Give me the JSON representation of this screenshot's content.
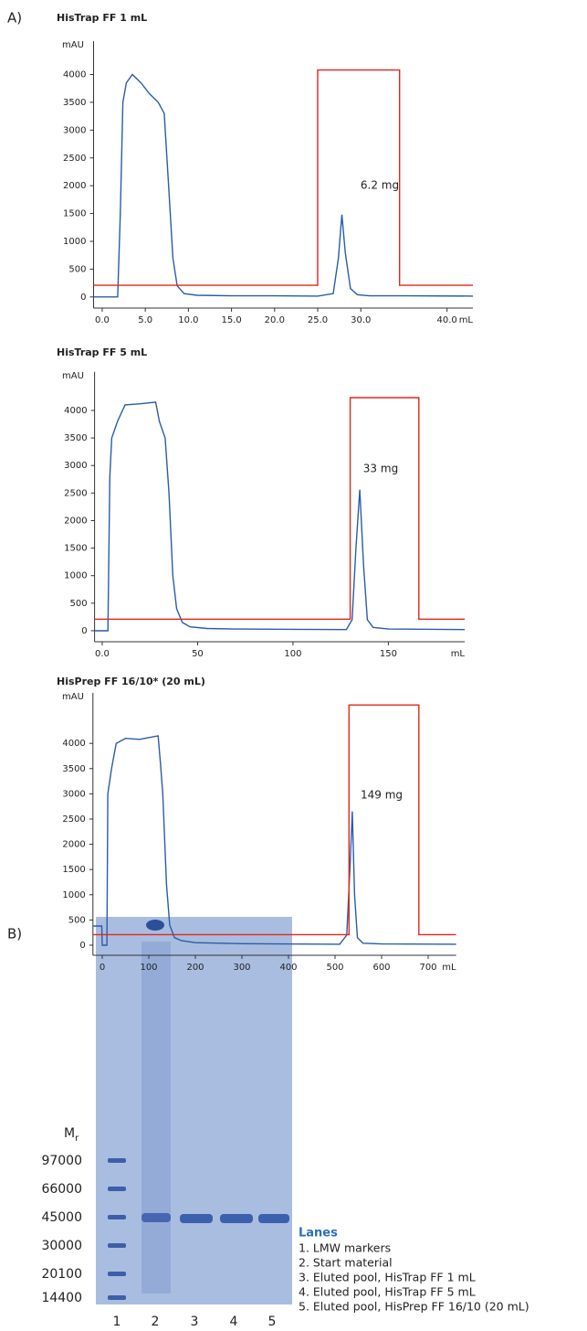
{
  "panel_labels": [
    "A)",
    "B)"
  ],
  "chart_data": [
    {
      "type": "line",
      "title": "HisTrap FF 1 mL",
      "y_label": "mAU",
      "x_label": "mL",
      "annotation": "6.2 mg",
      "xlim": [
        -1,
        43
      ],
      "ylim": [
        -200,
        4600
      ],
      "xticks": [
        {
          "value": 0,
          "label": "0.0"
        },
        {
          "value": 5,
          "label": "5.0"
        },
        {
          "value": 10,
          "label": "10.0"
        },
        {
          "value": 15,
          "label": "15.0"
        },
        {
          "value": 20,
          "label": "20.0"
        },
        {
          "value": 25,
          "label": "25.0"
        },
        {
          "value": 30,
          "label": "30.0"
        },
        {
          "value": 40,
          "label": "40.0"
        }
      ],
      "yticks": [
        0,
        500,
        1000,
        1500,
        2000,
        2500,
        3000,
        3500,
        4000
      ],
      "series": [
        {
          "color": "#2a5cab",
          "x": [
            -1,
            1.8,
            2.1,
            2.4,
            2.8,
            3.5,
            4.5,
            5.5,
            6.5,
            7.2,
            7.7,
            8.2,
            8.7,
            9.5,
            11,
            15,
            20,
            25,
            26.8,
            27.4,
            27.8,
            28.2,
            28.8,
            29.6,
            31,
            35,
            43
          ],
          "values": [
            0,
            0,
            1500,
            3500,
            3850,
            4000,
            3850,
            3650,
            3500,
            3300,
            2000,
            700,
            200,
            60,
            30,
            20,
            20,
            15,
            60,
            700,
            1480,
            800,
            150,
            40,
            20,
            20,
            15
          ]
        },
        {
          "color": "#e3261c",
          "x": [
            -1,
            25,
            25,
            34.5,
            34.5,
            43
          ],
          "values": [
            210,
            210,
            4080,
            4080,
            210,
            210
          ]
        }
      ]
    },
    {
      "type": "line",
      "title": "HisTrap FF 5 mL",
      "y_label": "mAU",
      "x_label": "mL",
      "annotation": "33 mg",
      "xlim": [
        -4,
        190
      ],
      "ylim": [
        -200,
        4700
      ],
      "xticks": [
        {
          "value": 0,
          "label": "0.0"
        },
        50,
        100,
        150
      ],
      "yticks": [
        0,
        500,
        1000,
        1500,
        2000,
        2500,
        3000,
        3500,
        4000
      ],
      "series": [
        {
          "color": "#2a5cab",
          "x": [
            -4,
            3,
            4,
            5,
            8,
            12,
            20,
            28,
            30,
            33,
            35,
            37,
            39,
            42,
            46,
            55,
            70,
            100,
            128,
            131,
            133,
            135,
            137,
            139,
            142,
            150,
            190
          ],
          "values": [
            0,
            0,
            2800,
            3500,
            3800,
            4100,
            4120,
            4150,
            3800,
            3500,
            2500,
            1000,
            400,
            150,
            70,
            40,
            30,
            25,
            20,
            200,
            1500,
            2560,
            1200,
            200,
            60,
            30,
            20
          ]
        },
        {
          "color": "#e3261c",
          "x": [
            -4,
            130,
            130,
            166,
            166,
            190
          ],
          "values": [
            210,
            210,
            4232,
            4232,
            210,
            210
          ]
        }
      ]
    },
    {
      "type": "line",
      "title": "HisPrep FF 16/10* (20 mL)",
      "y_label": "mAU",
      "x_label": "mL",
      "annotation": "149 mg",
      "xlim": [
        -20,
        760
      ],
      "ylim": [
        -200,
        5000
      ],
      "xticks": [
        0,
        100,
        200,
        300,
        400,
        500,
        600,
        700
      ],
      "yticks": [
        0,
        500,
        1000,
        1500,
        2000,
        2500,
        3000,
        3500,
        4000
      ],
      "series": [
        {
          "color": "#2a5cab",
          "x": [
            -20,
            -1,
            0,
            10,
            12,
            20,
            30,
            50,
            80,
            120,
            125,
            130,
            138,
            145,
            155,
            170,
            200,
            300,
            510,
            525,
            532,
            537,
            542,
            548,
            560,
            600,
            760
          ],
          "values": [
            380,
            380,
            0,
            0,
            3000,
            3500,
            4000,
            4100,
            4080,
            4150,
            3600,
            3000,
            1200,
            400,
            150,
            90,
            50,
            30,
            20,
            200,
            1500,
            2650,
            1000,
            150,
            40,
            25,
            20
          ]
        },
        {
          "color": "#e3261c",
          "x": [
            -20,
            530,
            530,
            680,
            680,
            760
          ],
          "values": [
            210,
            210,
            4760,
            4760,
            210,
            210
          ]
        }
      ]
    }
  ],
  "gel": {
    "mr_label": {
      "main": "M",
      "sub": "r"
    },
    "markers": [
      "97000",
      "66000",
      "45000",
      "30000",
      "20100",
      "14400"
    ],
    "lane_numbers": [
      "1",
      "2",
      "3",
      "4",
      "5"
    ],
    "legend_title": "Lanes",
    "legend_items": [
      "1. LMW markers",
      "2. Start material",
      "3. Eluted pool, HisTrap FF 1 mL",
      "4. Eluted pool, HisTrap FF 5 mL",
      "5. Eluted pool, HisPrep FF 16/10 (20 mL)"
    ]
  }
}
